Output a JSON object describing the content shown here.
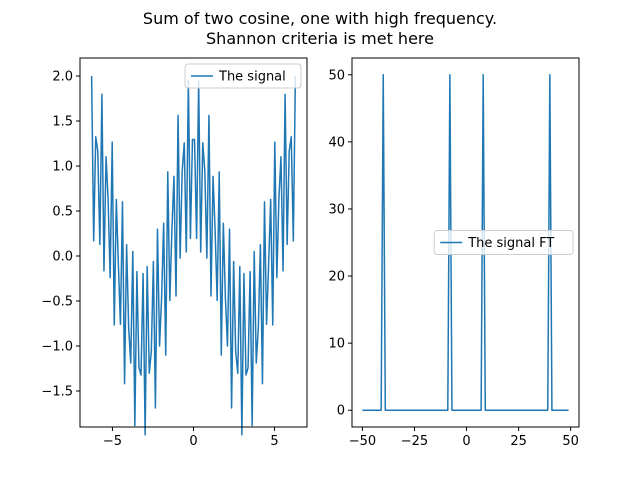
{
  "figure": {
    "title_line1": "Sum of two cosine, one with high frequency.",
    "title_line2": "Shannon criteria is met here"
  },
  "colors": {
    "series": "#1f77b4",
    "axes": "#000000",
    "legend_border": "#cccccc"
  },
  "chart_data": [
    {
      "type": "line",
      "signal": "cos(t) + cos(20t) sampled at 100 points over [-2π, 2π]",
      "x_start": -6.2832,
      "x_end": 6.2832,
      "n_points": 100,
      "xlim": [
        -7.0,
        7.0
      ],
      "ylim": [
        -1.9,
        2.2
      ],
      "xticks": [
        -5,
        0,
        5
      ],
      "xtick_labels": [
        "−5",
        "0",
        "5"
      ],
      "yticks": [
        -1.5,
        -1.0,
        -0.5,
        0.0,
        0.5,
        1.0,
        1.5,
        2.0
      ],
      "ytick_labels": [
        "−1.5",
        "−1.0",
        "−0.5",
        "0.0",
        "0.5",
        "1.0",
        "1.5",
        "2.0"
      ],
      "legend": {
        "label": "The signal",
        "placement": "upper right"
      },
      "grid": false
    },
    {
      "type": "line",
      "x": [
        -50,
        -41,
        -40,
        -39,
        -9,
        -8,
        -7,
        7,
        8,
        9,
        39,
        40,
        41,
        49
      ],
      "y": [
        0,
        0,
        50,
        0,
        0,
        50,
        0,
        0,
        50,
        0,
        0,
        50,
        0,
        0
      ],
      "xlim": [
        -55,
        54
      ],
      "ylim": [
        -2.5,
        52.5
      ],
      "xticks": [
        -50,
        -25,
        0,
        25,
        50
      ],
      "xtick_labels": [
        "−50",
        "−25",
        "0",
        "25",
        "50"
      ],
      "yticks": [
        0,
        10,
        20,
        30,
        40,
        50
      ],
      "ytick_labels": [
        "0",
        "10",
        "20",
        "30",
        "40",
        "50"
      ],
      "legend": {
        "label": "The signal FT",
        "placement": "center right"
      },
      "grid": false
    }
  ]
}
